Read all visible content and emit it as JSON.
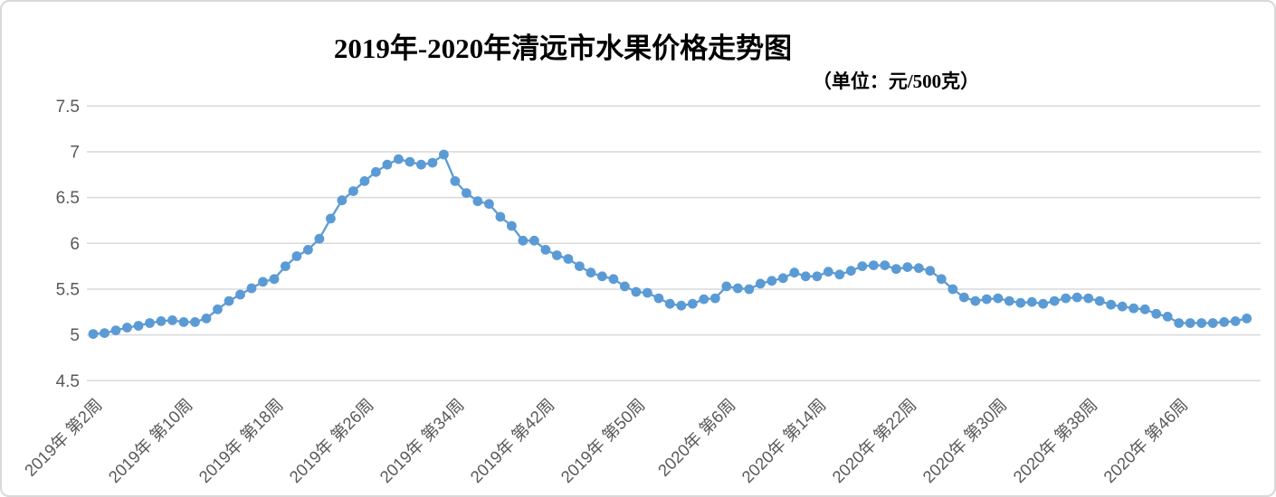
{
  "chart_data": {
    "type": "line",
    "title": "2019年-2020年清远市水果价格走势图",
    "subtitle": "（单位：元/500克）",
    "unit": "元/500克",
    "grid": true,
    "legend_position": "none",
    "ylim": [
      4.5,
      7.5
    ],
    "y_ticks": [
      7.5,
      7.0,
      6.5,
      6.0,
      5.5,
      5.0,
      4.5
    ],
    "y_tick_labels": [
      "7.5",
      "7",
      "6.5",
      "6",
      "5.5",
      "5",
      "4.5"
    ],
    "x_tick_labels": [
      "2019年 第2周",
      "2019年 第10周",
      "2019年 第18周",
      "2019年 第26周",
      "2019年 第34周",
      "2019年 第42周",
      "2019年 第50周",
      "2020年 第6周",
      "2020年 第14周",
      "2020年 第22周",
      "2020年 第30周",
      "2020年 第38周",
      "2020年 第46周"
    ],
    "x_tick_every": 8,
    "x_is_weekly": true,
    "x_range_note": "weekly points from 2019 week 2 to 2020 week 52",
    "series": [
      {
        "name": "水果价格",
        "color": "#5B9BD5",
        "marker": "circle",
        "values": [
          5.01,
          5.02,
          5.05,
          5.08,
          5.1,
          5.13,
          5.15,
          5.16,
          5.14,
          5.14,
          5.18,
          5.28,
          5.37,
          5.44,
          5.51,
          5.58,
          5.61,
          5.75,
          5.86,
          5.93,
          6.05,
          6.27,
          6.47,
          6.57,
          6.68,
          6.78,
          6.86,
          6.92,
          6.89,
          6.86,
          6.88,
          6.97,
          6.68,
          6.55,
          6.46,
          6.43,
          6.29,
          6.19,
          6.03,
          6.03,
          5.93,
          5.87,
          5.83,
          5.75,
          5.68,
          5.64,
          5.61,
          5.53,
          5.47,
          5.46,
          5.4,
          5.34,
          5.32,
          5.34,
          5.39,
          5.4,
          5.53,
          5.51,
          5.5,
          5.56,
          5.59,
          5.62,
          5.68,
          5.64,
          5.64,
          5.69,
          5.66,
          5.7,
          5.75,
          5.76,
          5.76,
          5.72,
          5.74,
          5.73,
          5.7,
          5.61,
          5.5,
          5.41,
          5.37,
          5.39,
          5.4,
          5.37,
          5.35,
          5.36,
          5.34,
          5.37,
          5.4,
          5.41,
          5.4,
          5.37,
          5.33,
          5.31,
          5.29,
          5.28,
          5.23,
          5.2,
          5.13,
          5.13,
          5.13,
          5.13,
          5.14,
          5.15,
          5.18
        ]
      }
    ],
    "colors": {
      "line": "#5B9BD5",
      "marker": "#5B9BD5",
      "axis_text": "#595959",
      "gridline": "#D9D9D9",
      "frame_border": "#D9D9D9",
      "title_text": "#000000"
    }
  }
}
